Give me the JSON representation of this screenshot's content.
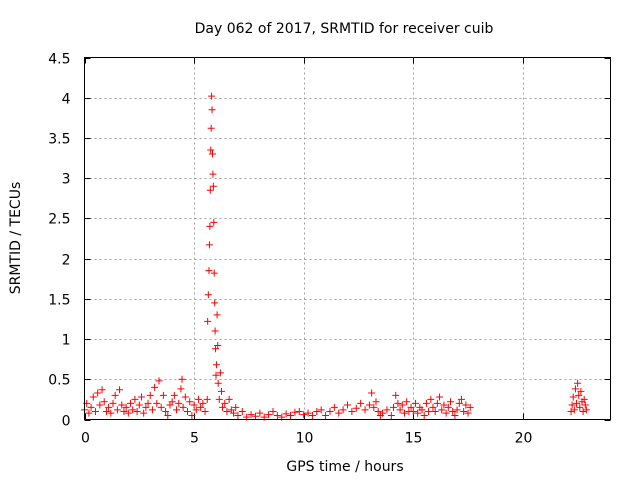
{
  "chart_data": {
    "type": "scatter",
    "title": "Day 062 of 2017, SRMTID for receiver cuib",
    "xlabel": "GPS time / hours",
    "ylabel": "SRMTID / TECUs",
    "xlim": [
      0,
      24
    ],
    "ylim": [
      0,
      4.5
    ],
    "x_ticks": [
      0,
      5,
      10,
      15,
      20
    ],
    "x_tick_labels": [
      "0",
      "5",
      "10",
      "15",
      "20"
    ],
    "y_ticks": [
      0,
      0.5,
      1,
      1.5,
      2,
      2.5,
      3,
      3.5,
      4,
      4.5
    ],
    "y_tick_labels": [
      "0",
      "0.5",
      "1",
      "1.5",
      "2",
      "2.5",
      "3",
      "3.5",
      "4",
      "4.5"
    ],
    "grid": true,
    "marker": "+",
    "color": "#ff0000",
    "series": [
      {
        "name": "SRMTID",
        "points": [
          [
            0.0,
            0.12
          ],
          [
            0.1,
            0.2
          ],
          [
            0.2,
            0.08
          ],
          [
            0.3,
            0.15
          ],
          [
            0.4,
            0.28
          ],
          [
            0.5,
            0.1
          ],
          [
            0.6,
            0.33
          ],
          [
            0.7,
            0.18
          ],
          [
            0.8,
            0.37
          ],
          [
            0.9,
            0.22
          ],
          [
            1.0,
            0.1
          ],
          [
            1.1,
            0.15
          ],
          [
            1.2,
            0.08
          ],
          [
            1.3,
            0.2
          ],
          [
            1.4,
            0.3
          ],
          [
            1.5,
            0.12
          ],
          [
            1.6,
            0.37
          ],
          [
            1.7,
            0.18
          ],
          [
            1.8,
            0.1
          ],
          [
            1.9,
            0.15
          ],
          [
            2.0,
            0.08
          ],
          [
            2.1,
            0.2
          ],
          [
            2.2,
            0.12
          ],
          [
            2.3,
            0.25
          ],
          [
            2.4,
            0.1
          ],
          [
            2.5,
            0.18
          ],
          [
            2.6,
            0.28
          ],
          [
            2.7,
            0.08
          ],
          [
            2.8,
            0.15
          ],
          [
            2.9,
            0.2
          ],
          [
            3.0,
            0.3
          ],
          [
            3.1,
            0.12
          ],
          [
            3.2,
            0.4
          ],
          [
            3.3,
            0.2
          ],
          [
            3.4,
            0.48
          ],
          [
            3.5,
            0.15
          ],
          [
            3.6,
            0.3
          ],
          [
            3.7,
            0.1
          ],
          [
            3.8,
            0.05
          ],
          [
            3.9,
            0.18
          ],
          [
            4.0,
            0.22
          ],
          [
            4.1,
            0.3
          ],
          [
            4.2,
            0.12
          ],
          [
            4.3,
            0.2
          ],
          [
            4.4,
            0.38
          ],
          [
            4.45,
            0.5
          ],
          [
            4.5,
            0.15
          ],
          [
            4.6,
            0.28
          ],
          [
            4.7,
            0.1
          ],
          [
            4.8,
            0.22
          ],
          [
            4.9,
            0.05
          ],
          [
            5.0,
            0.18
          ],
          [
            5.1,
            0.12
          ],
          [
            5.2,
            0.25
          ],
          [
            5.3,
            0.15
          ],
          [
            5.4,
            0.2
          ],
          [
            5.5,
            0.1
          ],
          [
            5.6,
            0.25
          ],
          [
            5.62,
            1.22
          ],
          [
            5.65,
            1.55
          ],
          [
            5.68,
            1.85
          ],
          [
            5.7,
            2.17
          ],
          [
            5.72,
            2.4
          ],
          [
            5.74,
            2.85
          ],
          [
            5.76,
            3.35
          ],
          [
            5.78,
            3.62
          ],
          [
            5.8,
            4.02
          ],
          [
            5.82,
            3.85
          ],
          [
            5.84,
            3.3
          ],
          [
            5.86,
            3.05
          ],
          [
            5.88,
            2.9
          ],
          [
            5.9,
            2.45
          ],
          [
            5.92,
            1.82
          ],
          [
            5.94,
            1.45
          ],
          [
            5.96,
            1.1
          ],
          [
            5.98,
            0.88
          ],
          [
            6.0,
            0.55
          ],
          [
            6.02,
            0.68
          ],
          [
            6.05,
            1.3
          ],
          [
            6.08,
            0.92
          ],
          [
            6.1,
            0.45
          ],
          [
            6.15,
            0.25
          ],
          [
            6.2,
            0.58
          ],
          [
            6.25,
            0.35
          ],
          [
            6.3,
            0.15
          ],
          [
            6.4,
            0.2
          ],
          [
            6.5,
            0.1
          ],
          [
            6.6,
            0.25
          ],
          [
            6.7,
            0.12
          ],
          [
            6.8,
            0.08
          ],
          [
            6.9,
            0.15
          ],
          [
            7.0,
            0.05
          ],
          [
            7.2,
            0.1
          ],
          [
            7.4,
            0.03
          ],
          [
            7.6,
            0.06
          ],
          [
            7.8,
            0.04
          ],
          [
            8.0,
            0.08
          ],
          [
            8.2,
            0.03
          ],
          [
            8.4,
            0.06
          ],
          [
            8.6,
            0.1
          ],
          [
            8.8,
            0.05
          ],
          [
            9.0,
            0.03
          ],
          [
            9.2,
            0.07
          ],
          [
            9.4,
            0.05
          ],
          [
            9.6,
            0.09
          ],
          [
            9.8,
            0.1
          ],
          [
            10.0,
            0.06
          ],
          [
            10.2,
            0.08
          ],
          [
            10.4,
            0.05
          ],
          [
            10.6,
            0.1
          ],
          [
            10.8,
            0.12
          ],
          [
            11.0,
            0.05
          ],
          [
            11.2,
            0.1
          ],
          [
            11.4,
            0.15
          ],
          [
            11.6,
            0.08
          ],
          [
            11.8,
            0.12
          ],
          [
            12.0,
            0.18
          ],
          [
            12.2,
            0.1
          ],
          [
            12.4,
            0.14
          ],
          [
            12.6,
            0.2
          ],
          [
            12.8,
            0.12
          ],
          [
            13.0,
            0.18
          ],
          [
            13.1,
            0.33
          ],
          [
            13.2,
            0.15
          ],
          [
            13.3,
            0.22
          ],
          [
            13.4,
            0.1
          ],
          [
            13.5,
            0.05
          ],
          [
            13.6,
            0.08
          ],
          [
            13.8,
            0.12
          ],
          [
            14.0,
            0.05
          ],
          [
            14.1,
            0.15
          ],
          [
            14.2,
            0.3
          ],
          [
            14.3,
            0.2
          ],
          [
            14.4,
            0.12
          ],
          [
            14.5,
            0.18
          ],
          [
            14.6,
            0.08
          ],
          [
            14.7,
            0.22
          ],
          [
            14.8,
            0.1
          ],
          [
            14.9,
            0.15
          ],
          [
            15.0,
            0.1
          ],
          [
            15.1,
            0.2
          ],
          [
            15.2,
            0.08
          ],
          [
            15.3,
            0.15
          ],
          [
            15.4,
            0.12
          ],
          [
            15.5,
            0.05
          ],
          [
            15.6,
            0.2
          ],
          [
            15.7,
            0.1
          ],
          [
            15.8,
            0.25
          ],
          [
            15.9,
            0.15
          ],
          [
            16.0,
            0.1
          ],
          [
            16.1,
            0.2
          ],
          [
            16.2,
            0.28
          ],
          [
            16.3,
            0.12
          ],
          [
            16.4,
            0.18
          ],
          [
            16.5,
            0.08
          ],
          [
            16.6,
            0.15
          ],
          [
            16.7,
            0.22
          ],
          [
            16.8,
            0.1
          ],
          [
            16.9,
            0.05
          ],
          [
            17.0,
            0.12
          ],
          [
            17.1,
            0.2
          ],
          [
            17.2,
            0.25
          ],
          [
            17.3,
            0.1
          ],
          [
            17.4,
            0.18
          ],
          [
            17.5,
            0.08
          ],
          [
            17.6,
            0.15
          ],
          [
            22.2,
            0.1
          ],
          [
            22.25,
            0.18
          ],
          [
            22.3,
            0.28
          ],
          [
            22.35,
            0.12
          ],
          [
            22.4,
            0.38
          ],
          [
            22.45,
            0.2
          ],
          [
            22.5,
            0.45
          ],
          [
            22.55,
            0.3
          ],
          [
            22.6,
            0.15
          ],
          [
            22.65,
            0.35
          ],
          [
            22.7,
            0.22
          ],
          [
            22.75,
            0.1
          ],
          [
            22.8,
            0.25
          ],
          [
            22.85,
            0.18
          ],
          [
            22.9,
            0.12
          ]
        ]
      }
    ]
  }
}
